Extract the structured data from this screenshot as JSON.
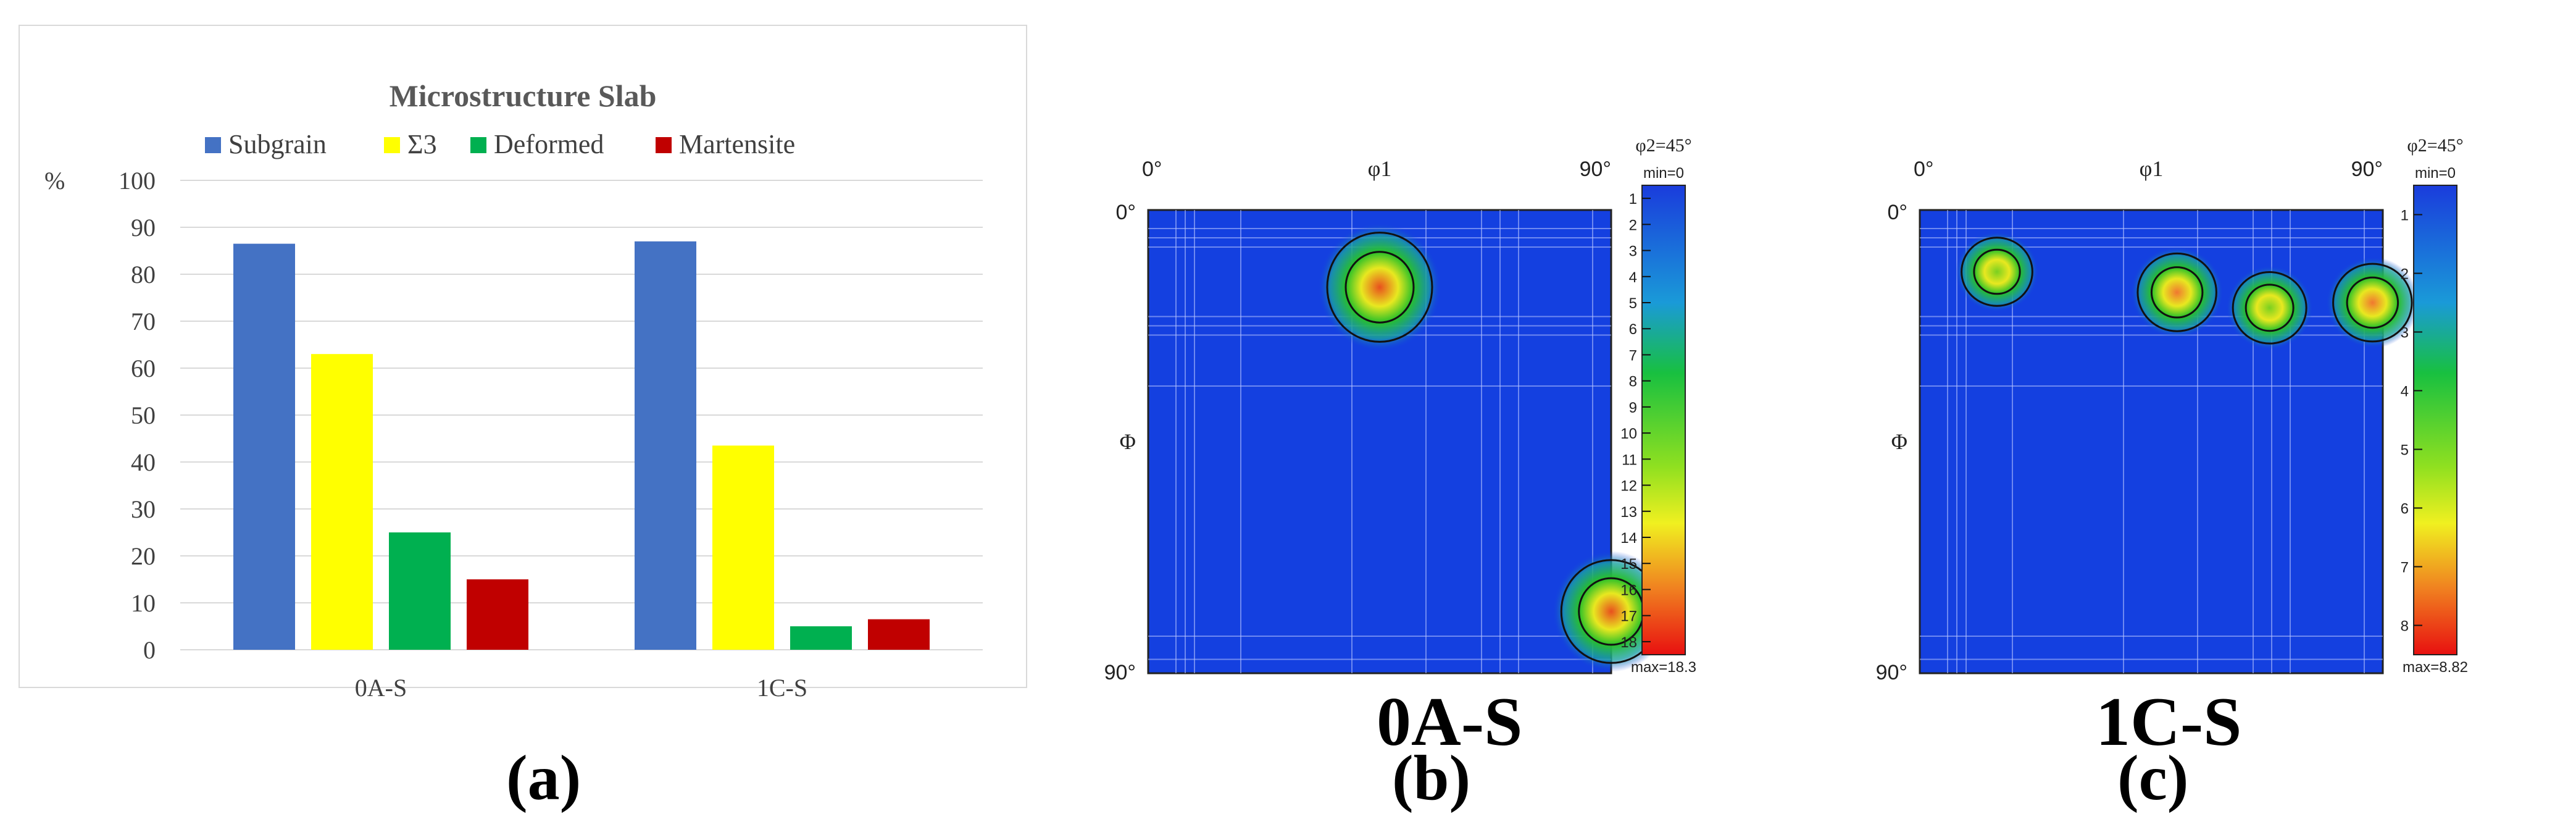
{
  "chart_data": [
    {
      "type": "bar",
      "title": "Microstructure Slab",
      "ylabel": "%",
      "ylim": [
        0,
        100
      ],
      "yticks": [
        "0",
        "10",
        "20",
        "30",
        "40",
        "50",
        "60",
        "70",
        "80",
        "90",
        "100"
      ],
      "categories": [
        "0A-S",
        "1C-S"
      ],
      "series": [
        {
          "name": "Subgrain",
          "values": [
            86.5,
            87
          ],
          "color": "#4472c4"
        },
        {
          "name": "Σ3",
          "values": [
            63,
            43.5
          ],
          "color": "#ffff00"
        },
        {
          "name": "Deformed",
          "values": [
            25,
            5
          ],
          "color": "#00b050"
        },
        {
          "name": "Martensite",
          "values": [
            15,
            6.5
          ],
          "color": "#c00000"
        }
      ],
      "grid": true,
      "legend_placement": "top"
    },
    {
      "type": "heatmap",
      "sample": "0A-S",
      "caption": "(b)",
      "x_axis": {
        "left": "0°",
        "mid": "φ1",
        "right": "90°"
      },
      "y_axis": {
        "top": "0°",
        "mid": "Φ",
        "bottom": "90°"
      },
      "section": "φ2=45°",
      "scale_min": "min=0",
      "scale_max": "max=18.3",
      "scale_ticks": [
        "1",
        "2",
        "3",
        "4",
        "5",
        "6",
        "7",
        "8",
        "9",
        "10",
        "11",
        "12",
        "13",
        "14",
        "15",
        "16",
        "17",
        "18"
      ],
      "peaks": [
        {
          "phi1": 45,
          "Phi": 15,
          "intensity": 18
        },
        {
          "phi1": 90,
          "Phi": 78,
          "intensity": 16
        }
      ]
    },
    {
      "type": "heatmap",
      "sample": "1C-S",
      "caption": "(c)",
      "x_axis": {
        "left": "0°",
        "mid": "φ1",
        "right": "90°"
      },
      "y_axis": {
        "top": "0°",
        "mid": "Φ",
        "bottom": "90°"
      },
      "section": "φ2=45°",
      "scale_min": "min=0",
      "scale_max": "max=8.82",
      "scale_ticks": [
        "1",
        "2",
        "3",
        "4",
        "5",
        "6",
        "7",
        "8"
      ],
      "peaks": [
        {
          "phi1": 15,
          "Phi": 12,
          "intensity": 5
        },
        {
          "phi1": 50,
          "Phi": 16,
          "intensity": 8
        },
        {
          "phi1": 68,
          "Phi": 19,
          "intensity": 6
        },
        {
          "phi1": 88,
          "Phi": 18,
          "intensity": 8
        }
      ]
    }
  ],
  "captions": {
    "a": "(a)"
  }
}
